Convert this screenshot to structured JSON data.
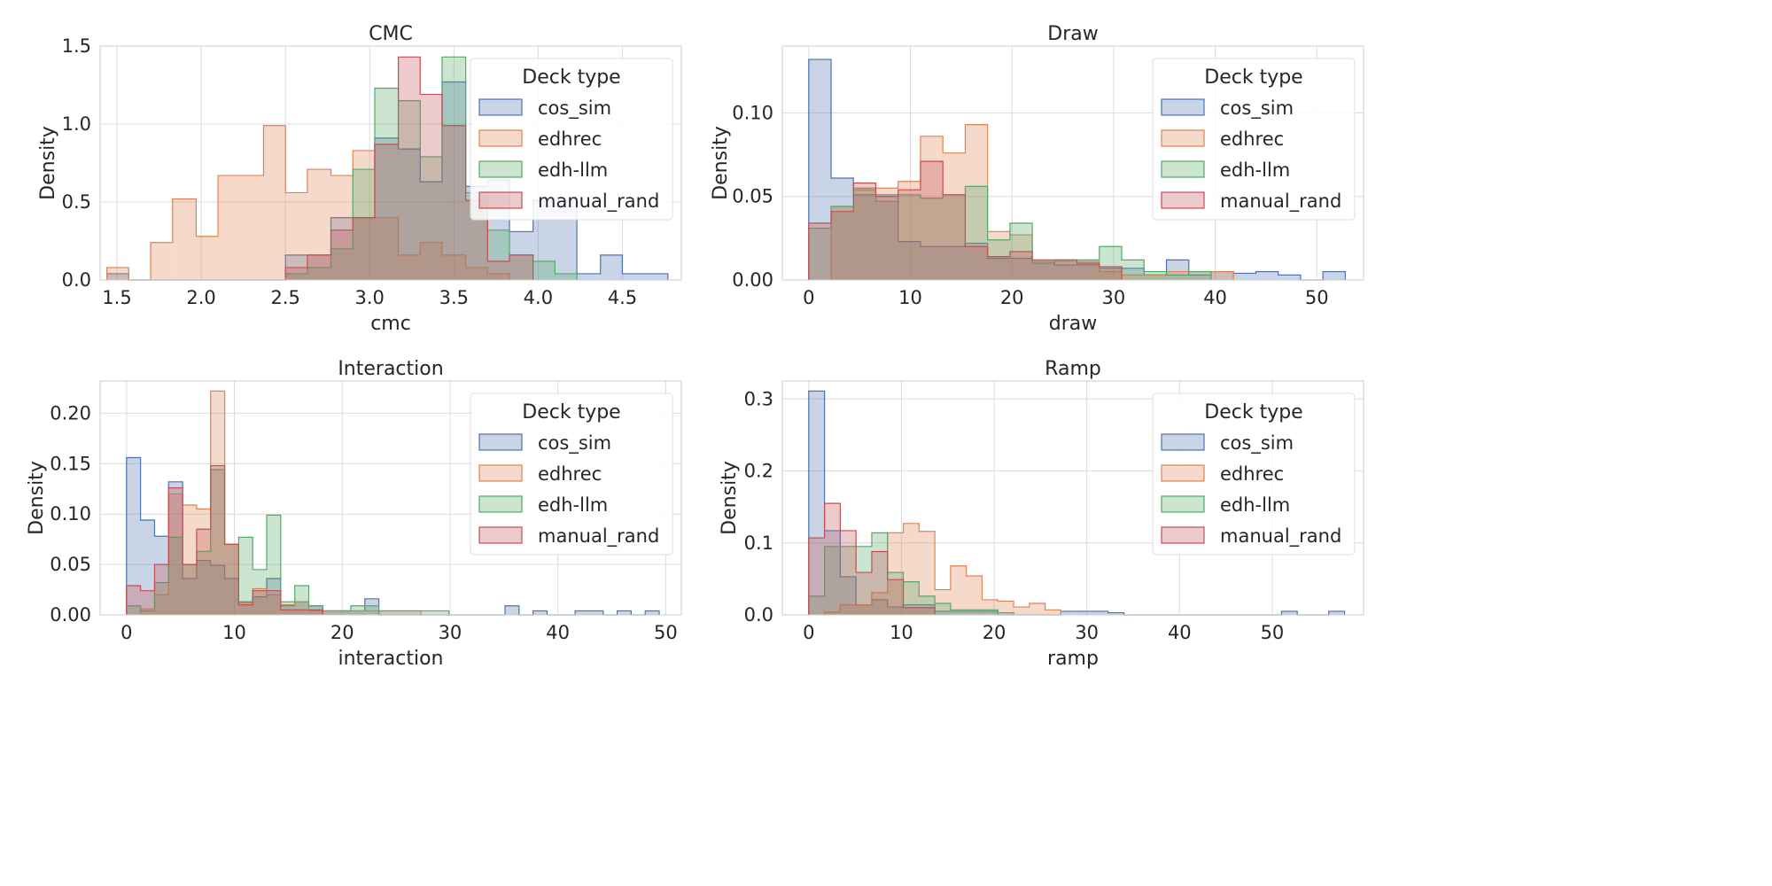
{
  "figure": {
    "legend_title": "Deck type",
    "ylabel": "Density"
  },
  "series_names": [
    "cos_sim",
    "edhrec",
    "edh-llm",
    "manual_rand"
  ],
  "series_colors": [
    "#4c72b0",
    "#dd8452",
    "#55a868",
    "#c44e52"
  ],
  "chart_data": [
    {
      "type": "histogram",
      "title": "CMC",
      "xlabel": "cmc",
      "ylabel": "Density",
      "xlim": [
        1.4,
        4.85
      ],
      "ylim": [
        0,
        1.5
      ],
      "xticks": [
        1.5,
        2.0,
        2.5,
        3.0,
        3.5,
        4.0,
        4.5
      ],
      "xtick_labels": [
        "1.5",
        "2.0",
        "2.5",
        "3.0",
        "3.5",
        "4.0",
        "4.5"
      ],
      "yticks": [
        0.0,
        0.5,
        1.0,
        1.5
      ],
      "ytick_labels": [
        "0.0",
        "0.5",
        "1.0",
        "1.5"
      ],
      "grid": true,
      "legend": "top-right",
      "series": [
        {
          "name": "cos_sim",
          "edges": [
            1.44,
            1.57,
            2.5,
            2.63,
            2.77,
            2.9,
            3.03,
            3.17,
            3.3,
            3.43,
            3.57,
            3.7,
            3.83,
            3.97,
            4.1,
            4.23,
            4.37,
            4.5,
            4.63,
            4.77
          ],
          "values": [
            0.04,
            0,
            0.16,
            0.16,
            0.4,
            0.4,
            0.91,
            0.84,
            0.63,
            1.27,
            0.6,
            0.64,
            0.31,
            0.51,
            0.51,
            0.04,
            0.16,
            0.04,
            0.04
          ]
        },
        {
          "name": "edhrec",
          "edges": [
            1.44,
            1.57,
            1.7,
            1.83,
            1.97,
            2.1,
            2.23,
            2.37,
            2.5,
            2.63,
            2.77,
            2.9,
            3.03,
            3.17,
            3.3,
            3.43,
            3.57,
            3.7,
            3.83
          ],
          "values": [
            0.08,
            0,
            0.24,
            0.52,
            0.28,
            0.67,
            0.67,
            0.99,
            0.56,
            0.71,
            0.67,
            0.83,
            0.4,
            0.16,
            0.24,
            0.16,
            0.08,
            0.04
          ]
        },
        {
          "name": "edh-llm",
          "edges": [
            2.5,
            2.63,
            2.77,
            2.9,
            3.03,
            3.17,
            3.3,
            3.43,
            3.57,
            3.7,
            3.83,
            3.97,
            4.1,
            4.23
          ],
          "values": [
            0.04,
            0.08,
            0.2,
            0.71,
            1.23,
            1.15,
            0.79,
            1.43,
            0.56,
            0.32,
            0.16,
            0.12,
            0.04
          ]
        },
        {
          "name": "manual_rand",
          "edges": [
            2.5,
            2.63,
            2.77,
            2.9,
            3.03,
            3.17,
            3.3,
            3.43,
            3.57,
            3.7,
            3.83,
            3.97
          ],
          "values": [
            0.08,
            0.16,
            0.32,
            0.4,
            0.87,
            1.43,
            1.19,
            0.99,
            0.51,
            0.12,
            0.16
          ]
        }
      ]
    },
    {
      "type": "histogram",
      "title": "Draw",
      "xlabel": "draw",
      "ylabel": "Density",
      "xlim": [
        -2.6,
        54.6
      ],
      "ylim": [
        0,
        0.14
      ],
      "xticks": [
        0,
        10,
        20,
        30,
        40,
        50
      ],
      "xtick_labels": [
        "0",
        "10",
        "20",
        "30",
        "40",
        "50"
      ],
      "yticks": [
        0,
        0.05,
        0.1
      ],
      "ytick_labels": [
        "0.00",
        "0.05",
        "0.10"
      ],
      "grid": true,
      "legend": "top-right",
      "series": [
        {
          "name": "cos_sim",
          "edges": [
            0,
            2.2,
            4.4,
            6.6,
            8.8,
            11,
            13.2,
            15.4,
            17.6,
            19.8,
            22,
            24.2,
            26.4,
            28.6,
            30.8,
            33,
            35.2,
            37.4,
            39.6,
            41.8,
            44,
            46.2,
            48.4,
            50.6,
            52.8
          ],
          "values": [
            0.132,
            0.061,
            0.051,
            0.051,
            0.023,
            0.02,
            0.02,
            0.022,
            0.013,
            0.013,
            0.011,
            0.009,
            0.009,
            0.007,
            0.007,
            0.003,
            0.012,
            0.003,
            0.005,
            0.004,
            0.005,
            0.003,
            0,
            0.005
          ]
        },
        {
          "name": "edhrec",
          "edges": [
            2.2,
            4.4,
            6.6,
            8.8,
            11,
            13.2,
            15.4,
            17.6,
            19.8,
            22,
            24.2,
            26.4,
            28.6,
            30.8,
            33,
            35.2,
            37.4,
            39.6,
            41.8
          ],
          "values": [
            0.044,
            0.055,
            0.055,
            0.059,
            0.086,
            0.076,
            0.093,
            0.029,
            0.027,
            0.011,
            0.011,
            0.011,
            0.005,
            0.003,
            0.003,
            0.005,
            0.005,
            0.005
          ]
        },
        {
          "name": "edh-llm",
          "edges": [
            0,
            2.2,
            4.4,
            6.6,
            8.8,
            11,
            13.2,
            15.4,
            17.6,
            19.8,
            22,
            24.2,
            26.4,
            28.6,
            30.8,
            33,
            35.2,
            37.4,
            39.6
          ],
          "values": [
            0.031,
            0.044,
            0.054,
            0.047,
            0.051,
            0.049,
            0.051,
            0.056,
            0.024,
            0.034,
            0.01,
            0.012,
            0.012,
            0.02,
            0.012,
            0.005,
            0.003,
            0.005
          ]
        },
        {
          "name": "manual_rand",
          "edges": [
            0,
            2.2,
            4.4,
            6.6,
            8.8,
            11,
            13.2,
            15.4,
            17.6,
            19.8,
            22,
            24.2,
            26.4,
            28.6,
            30.8
          ],
          "values": [
            0.034,
            0.041,
            0.058,
            0.05,
            0.054,
            0.071,
            0.051,
            0.02,
            0.014,
            0.017,
            0.012,
            0.012,
            0.01,
            0.008
          ]
        }
      ]
    },
    {
      "type": "histogram",
      "title": "Interaction",
      "xlabel": "interaction",
      "ylabel": "Density",
      "xlim": [
        -2.45,
        51.45
      ],
      "ylim": [
        0,
        0.232
      ],
      "xticks": [
        0,
        10,
        20,
        30,
        40,
        50
      ],
      "xtick_labels": [
        "0",
        "10",
        "20",
        "30",
        "40",
        "50"
      ],
      "yticks": [
        0,
        0.05,
        0.1,
        0.15,
        0.2
      ],
      "ytick_labels": [
        "0.00",
        "0.05",
        "0.10",
        "0.15",
        "0.20"
      ],
      "grid": true,
      "legend": "top-right",
      "series": [
        {
          "name": "cos_sim",
          "edges": [
            0,
            1.3,
            2.6,
            3.9,
            5.2,
            6.5,
            7.8,
            9.1,
            10.4,
            11.7,
            13,
            14.3,
            15.6,
            16.9,
            18.2,
            19.5,
            20.8,
            22.1,
            23.4,
            35.1,
            36.4,
            37.7,
            39,
            41.6,
            42.9,
            44.2,
            45.5,
            46.8,
            48.1,
            49.4
          ],
          "values": [
            0.156,
            0.094,
            0.078,
            0.132,
            0.036,
            0.054,
            0.049,
            0.036,
            0.013,
            0.018,
            0.036,
            0.009,
            0.013,
            0.009,
            0.004,
            0.004,
            0.004,
            0.016,
            0,
            0.009,
            0,
            0.004,
            0,
            0.004,
            0.004,
            0,
            0.004,
            0,
            0.004
          ]
        },
        {
          "name": "edhrec",
          "edges": [
            1.3,
            2.6,
            3.9,
            5.2,
            6.5,
            7.8,
            9.1,
            10.4,
            11.7,
            13,
            14.3,
            15.6,
            16.9,
            18.2,
            19.5,
            20.8,
            22.1,
            23.4,
            24.7,
            26,
            27.3
          ],
          "values": [
            0.006,
            0.02,
            0.12,
            0.109,
            0.105,
            0.222,
            0.07,
            0.012,
            0.026,
            0.02,
            0.01,
            0.013,
            0.004,
            0.004,
            0.004,
            0.004,
            0.004,
            0.004,
            0.004,
            0.004
          ]
        },
        {
          "name": "edh-llm",
          "edges": [
            0,
            1.3,
            2.6,
            3.9,
            5.2,
            6.5,
            7.8,
            9.1,
            10.4,
            11.7,
            13,
            14.3,
            15.6,
            16.9,
            18.2,
            19.5,
            20.8,
            22.1,
            23.4,
            24.7,
            26,
            27.3,
            28.6,
            29.9
          ],
          "values": [
            0.009,
            0.004,
            0.032,
            0.077,
            0.05,
            0.063,
            0.144,
            0.07,
            0.077,
            0.045,
            0.099,
            0.013,
            0.029,
            0.009,
            0.004,
            0.004,
            0.009,
            0.009,
            0.004,
            0.004,
            0.004,
            0.004,
            0.004
          ]
        },
        {
          "name": "manual_rand",
          "edges": [
            0,
            1.3,
            2.6,
            3.9,
            5.2,
            6.5,
            7.8,
            9.1,
            10.4,
            11.7,
            13,
            14.3,
            15.6,
            16.9,
            18.2
          ],
          "values": [
            0.029,
            0.024,
            0.05,
            0.126,
            0.05,
            0.085,
            0.148,
            0.07,
            0.01,
            0.024,
            0.024,
            0.005,
            0.005,
            0.005
          ]
        }
      ]
    },
    {
      "type": "histogram",
      "title": "Ramp",
      "xlabel": "ramp",
      "ylabel": "Density",
      "xlim": [
        -2.85,
        59.85
      ],
      "ylim": [
        0,
        0.325
      ],
      "xticks": [
        0,
        10,
        20,
        30,
        40,
        50
      ],
      "xtick_labels": [
        "0",
        "10",
        "20",
        "30",
        "40",
        "50"
      ],
      "yticks": [
        0,
        0.1,
        0.2,
        0.3
      ],
      "ytick_labels": [
        "0.0",
        "0.1",
        "0.2",
        "0.3"
      ],
      "grid": true,
      "legend": "top-right",
      "series": [
        {
          "name": "cos_sim",
          "edges": [
            0,
            1.7,
            3.4,
            5.1,
            6.8,
            8.5,
            10.2,
            11.9,
            13.6,
            15.3,
            17,
            18.7,
            20.4,
            27.2,
            28.9,
            30.6,
            32.3,
            34,
            51,
            52.7,
            54.4,
            56.1,
            57.8
          ],
          "values": [
            0.311,
            0.117,
            0.053,
            0.014,
            0.021,
            0.011,
            0.014,
            0.014,
            0.005,
            0.005,
            0.005,
            0.005,
            0,
            0.005,
            0.005,
            0.005,
            0.003,
            0,
            0.005,
            0,
            0,
            0.005
          ]
        },
        {
          "name": "edhrec",
          "edges": [
            1.7,
            3.4,
            5.1,
            6.8,
            8.5,
            10.2,
            11.9,
            13.6,
            15.3,
            17,
            18.7,
            20.4,
            22.1,
            23.8,
            25.5,
            27.2
          ],
          "values": [
            0.004,
            0.014,
            0.014,
            0.031,
            0.114,
            0.127,
            0.116,
            0.035,
            0.068,
            0.054,
            0.021,
            0.019,
            0.011,
            0.016,
            0.007
          ]
        },
        {
          "name": "edh-llm",
          "edges": [
            0,
            1.7,
            3.4,
            5.1,
            6.8,
            8.5,
            10.2,
            11.9,
            13.6,
            15.3,
            17,
            18.7,
            20.4,
            22.1
          ],
          "values": [
            0.026,
            0.095,
            0.095,
            0.095,
            0.114,
            0.059,
            0.046,
            0.026,
            0.016,
            0.007,
            0.007,
            0.007,
            0.003
          ]
        },
        {
          "name": "manual_rand",
          "edges": [
            0,
            1.7,
            3.4,
            5.1,
            6.8,
            8.5,
            10.2,
            11.9,
            13.6
          ],
          "values": [
            0.107,
            0.155,
            0.117,
            0.059,
            0.088,
            0.049,
            0.01,
            0.01
          ]
        }
      ]
    }
  ]
}
